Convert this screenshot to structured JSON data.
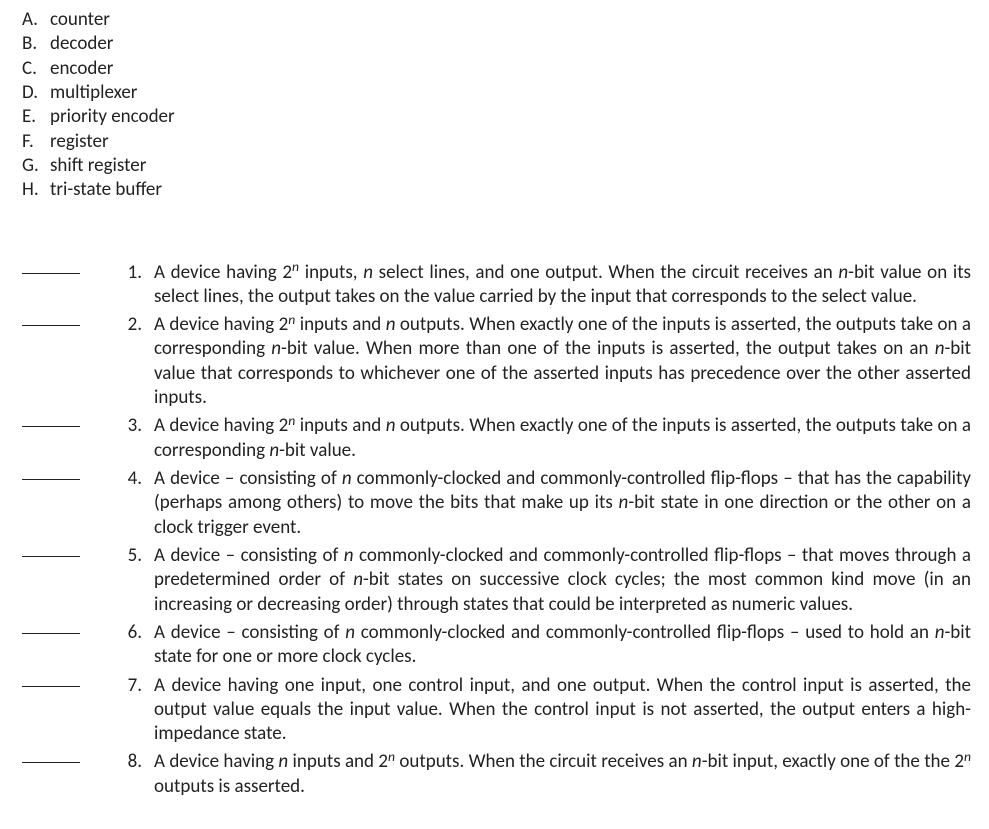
{
  "options": [
    {
      "letter": "A.",
      "text": "counter"
    },
    {
      "letter": "B.",
      "text": "decoder"
    },
    {
      "letter": "C.",
      "text": "encoder"
    },
    {
      "letter": "D.",
      "text": "multiplexer"
    },
    {
      "letter": "E.",
      "text": "priority encoder"
    },
    {
      "letter": "F.",
      "text": "register"
    },
    {
      "letter": "G.",
      "text": "shift register"
    },
    {
      "letter": "H.",
      "text": "tri-state buffer"
    }
  ],
  "definitions": [
    {
      "num": "1.",
      "segments": [
        {
          "t": "A device having 2"
        },
        {
          "supn": true
        },
        {
          "t": " inputs, "
        },
        {
          "it": "n"
        },
        {
          "t": " select lines, and one output. When the circuit receives an "
        },
        {
          "it": "n"
        },
        {
          "t": "-bit value on its select lines, the output takes on the value carried by the input that corresponds to the select value."
        }
      ]
    },
    {
      "num": "2.",
      "segments": [
        {
          "t": "A device having 2"
        },
        {
          "supn": true
        },
        {
          "t": " inputs and "
        },
        {
          "it": "n"
        },
        {
          "t": " outputs. When exactly one of the inputs is asserted, the outputs take on a corresponding "
        },
        {
          "it": "n"
        },
        {
          "t": "-bit value. When more than one of the inputs is asserted, the output takes on an "
        },
        {
          "it": "n"
        },
        {
          "t": "-bit value that corresponds to whichever one of the asserted inputs has precedence over the other asserted inputs."
        }
      ]
    },
    {
      "num": "3.",
      "segments": [
        {
          "t": "A device having 2"
        },
        {
          "supn": true
        },
        {
          "t": " inputs and "
        },
        {
          "it": "n"
        },
        {
          "t": " outputs. When exactly one of the inputs is asserted, the outputs take on a corresponding "
        },
        {
          "it": "n"
        },
        {
          "t": "-bit value."
        }
      ]
    },
    {
      "num": "4.",
      "segments": [
        {
          "t": "A device – consisting of "
        },
        {
          "it": "n"
        },
        {
          "t": " commonly-clocked and commonly-controlled flip-flops – that has the capability (perhaps among others) to move the bits that make up its "
        },
        {
          "it": "n"
        },
        {
          "t": "-bit state in one direction or the other on a clock trigger event."
        }
      ]
    },
    {
      "num": "5.",
      "segments": [
        {
          "t": "A device – consisting of "
        },
        {
          "it": "n"
        },
        {
          "t": " commonly-clocked and commonly-controlled flip-flops – that moves through a predetermined order of "
        },
        {
          "it": "n"
        },
        {
          "t": "-bit states on successive clock cycles; the most common kind move (in an increasing or decreasing order) through states that could be interpreted as numeric values."
        }
      ]
    },
    {
      "num": "6.",
      "segments": [
        {
          "t": "A device – consisting of "
        },
        {
          "it": "n"
        },
        {
          "t": " commonly-clocked and commonly-controlled flip-flops – used to hold an "
        },
        {
          "it": "n"
        },
        {
          "t": "-bit state for one or more clock cycles."
        }
      ]
    },
    {
      "num": "7.",
      "segments": [
        {
          "t": "A device having one input, one control input, and one output. When the control input is asserted, the output value equals the input value. When the control input is not asserted, the output enters a high-impedance state."
        }
      ]
    },
    {
      "num": "8.",
      "segments": [
        {
          "t": "A device having "
        },
        {
          "it": "n"
        },
        {
          "t": " inputs and 2"
        },
        {
          "supn": true
        },
        {
          "t": " outputs. When the circuit receives an "
        },
        {
          "it": "n"
        },
        {
          "t": "-bit input, exactly one of the the 2"
        },
        {
          "supn": true
        },
        {
          "t": " outputs is asserted."
        }
      ]
    }
  ]
}
